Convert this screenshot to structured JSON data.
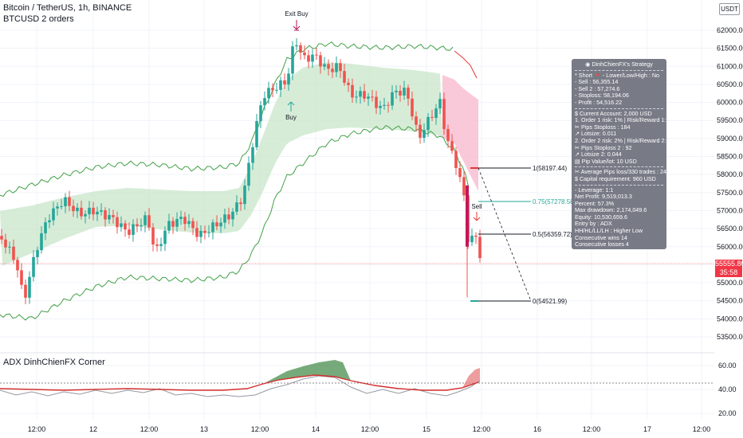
{
  "header": {
    "title": "Bitcoin / TetherUS, 1h, BINANCE",
    "subtitle": "BTCUSD 2 orders",
    "currency_badge": "USDT",
    "indicator_title": "ADX DinhChienFX Corner"
  },
  "price_axis": {
    "labels": [
      "62000.00",
      "61500.00",
      "61000.00",
      "60500.00",
      "60000.00",
      "59500.00",
      "59000.00",
      "58500.00",
      "58000.00",
      "57500.00",
      "57000.00",
      "56500.00",
      "56000.00",
      "55500.00",
      "55000.00",
      "54500.00",
      "54000.00",
      "53500.00"
    ],
    "current_price": "55555.80",
    "countdown": "35:58"
  },
  "indicator_axis": {
    "labels": [
      "60.00",
      "40.00",
      "20.00"
    ]
  },
  "time_axis": {
    "labels": [
      "12:00",
      "12",
      "12:00",
      "13",
      "12:00",
      "14",
      "12:00",
      "15",
      "12:00",
      "16",
      "12:00",
      "17",
      "12:00"
    ]
  },
  "annotations": {
    "exit_buy": "Exit Buy",
    "buy": "Buy",
    "sell": "Sell"
  },
  "levels": [
    {
      "label": "1(58197.44)"
    },
    {
      "label": "0.75(57278.58)"
    },
    {
      "label": "0.5(56359.72)"
    },
    {
      "label": "0(54521.99)"
    }
  ],
  "info_panel": {
    "title": "DinhChienFX's Strategy",
    "lines_a": [
      "* Short  🔻   - Lower/Low/High : No",
      "- Sell    : 56,355.14",
      "- Sell 2 : 57,274.6",
      "- Stoploss: 58,194.06",
      "- Profit  : 54,516.22"
    ],
    "lines_b": [
      "$ Current Account: 2,000 USD",
      "1. Order 1 risk: 1% | Risk/Reward 1: 1/1",
      "    ✂ Pips Stoploss : 184",
      "    ↗ Lotsize: 0.011",
      "2. Order 2 risk: 2% | Risk/Reward 2: 1/3",
      "    ✂ Pips Stoploss 2 : 92",
      "    ↗ Lotsize 2: 0.044",
      "▤ Pip Value/lot: 10 USD"
    ],
    "lines_c": [
      "✂ Average Pips loss/330 trades : 24",
      "$ Capital requirement: 960 USD"
    ],
    "lines_d": [
      "- Leverage: 1:1",
      "Net Profit: 9,519,013.3",
      "Percent: 57.3%",
      "Max drawdown: 2,174,049.6",
      "Equity: 10,530,659.6",
      "Entry by : ADX",
      "HH/HL/LL/LH : Higher Low",
      "Consecutive wins 14",
      "Consecutive losses 4"
    ]
  },
  "colors": {
    "bull": "#26a69a",
    "bear": "#ef5350",
    "band_fill": "#c8e6c9",
    "sell_zone": "#f8bbd0",
    "upper_band": "#43a047",
    "adx_fill_up": "#2e7d32",
    "adx_fill_down": "#e57373",
    "adx_line": "#d32f2f",
    "adx_signal": "#9598a1"
  }
}
